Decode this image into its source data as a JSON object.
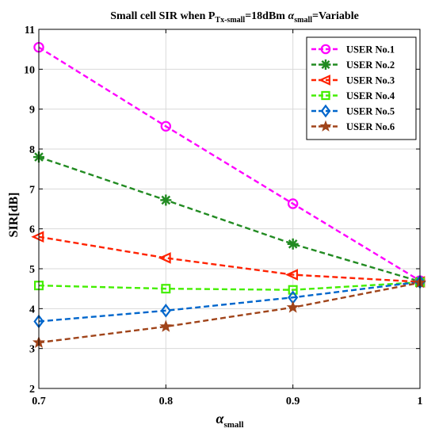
{
  "chart_data": {
    "type": "line",
    "title": {
      "prefix": "Small cell  SIR  when P",
      "p_sub": "Tx-small",
      "middle": "=18dBm ",
      "alpha": "α",
      "alpha_sub": "small",
      "suffix": "=Variable"
    },
    "xlabel": {
      "symbol": "α",
      "sub": "small"
    },
    "ylabel": "SIR[dB]",
    "xlim": [
      0.7,
      1
    ],
    "ylim": [
      2,
      11
    ],
    "x_ticks": [
      0.7,
      0.8,
      0.9,
      1
    ],
    "x_tick_labels": [
      "0.7",
      "0.8",
      "0.9",
      "1"
    ],
    "y_ticks": [
      2,
      3,
      4,
      5,
      6,
      7,
      8,
      9,
      10,
      11
    ],
    "y_tick_labels": [
      "2",
      "3",
      "4",
      "5",
      "6",
      "7",
      "8",
      "9",
      "10",
      "11"
    ],
    "grid": true,
    "legend_position": "top-right",
    "x": [
      0.7,
      0.8,
      0.9,
      1
    ],
    "series": [
      {
        "name": "USER No.1",
        "values": [
          10.55,
          8.57,
          6.63,
          4.7
        ],
        "color": "#ff00ff",
        "marker": "circle"
      },
      {
        "name": "USER No.2",
        "values": [
          7.8,
          6.72,
          5.62,
          4.68
        ],
        "color": "#228b22",
        "marker": "asterisk"
      },
      {
        "name": "USER No.3",
        "values": [
          5.8,
          5.27,
          4.85,
          4.67
        ],
        "color": "#ff2200",
        "marker": "triangle-left"
      },
      {
        "name": "USER No.4",
        "values": [
          4.58,
          4.5,
          4.47,
          4.66
        ],
        "color": "#44ee00",
        "marker": "square"
      },
      {
        "name": "USER No.5",
        "values": [
          3.68,
          3.95,
          4.28,
          4.67
        ],
        "color": "#0066cc",
        "marker": "diamond"
      },
      {
        "name": "USER No.6",
        "values": [
          3.15,
          3.55,
          4.03,
          4.65
        ],
        "color": "#a0441a",
        "marker": "star"
      }
    ]
  }
}
